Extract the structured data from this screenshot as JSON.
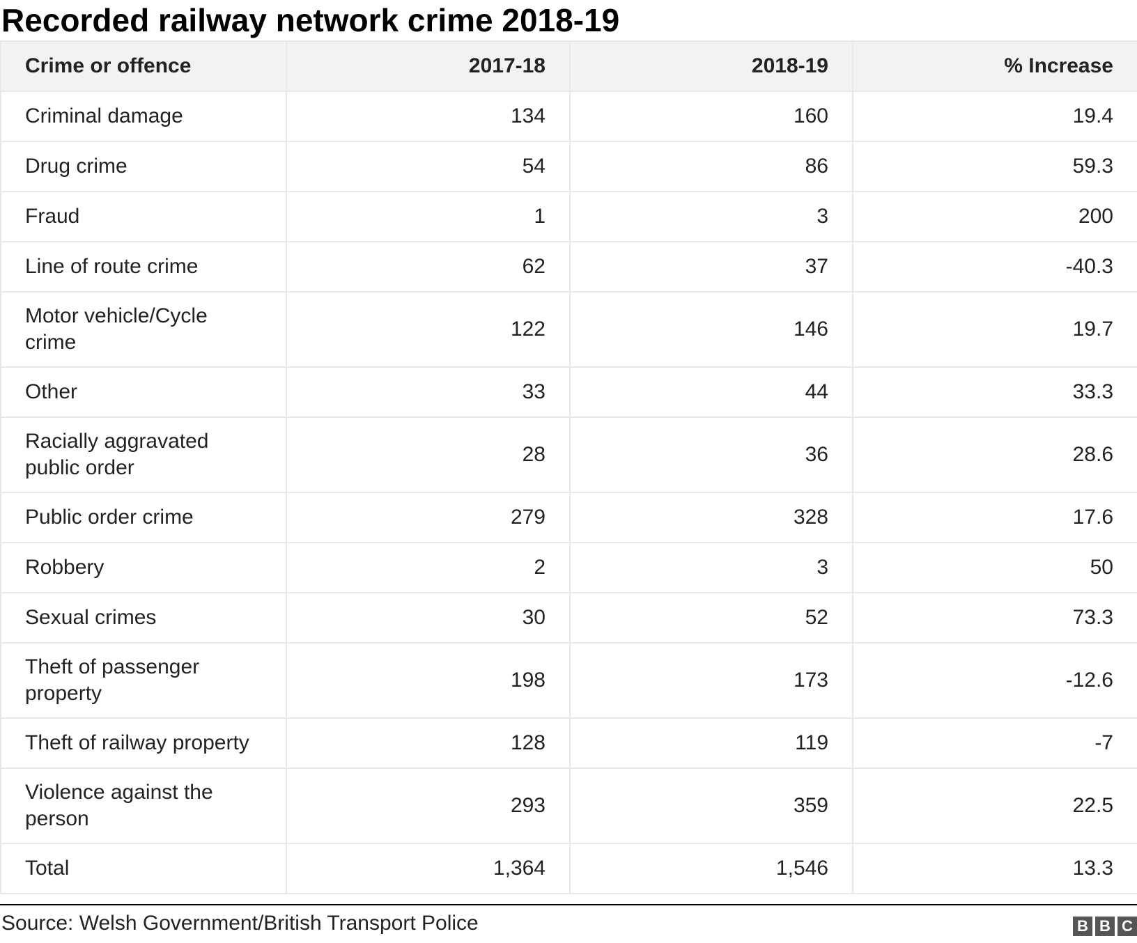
{
  "title": "Recorded railway network crime 2018-19",
  "source": "Source: Welsh Government/British Transport Police",
  "logo": {
    "letters": [
      "B",
      "B",
      "C"
    ]
  },
  "chart_data": {
    "type": "table",
    "title": "Recorded railway network crime 2018-19",
    "columns": [
      "Crime or offence",
      "2017-18",
      "2018-19",
      "% Increase"
    ],
    "rows": [
      [
        "Criminal damage",
        "134",
        "160",
        "19.4"
      ],
      [
        "Drug crime",
        "54",
        "86",
        "59.3"
      ],
      [
        "Fraud",
        "1",
        "3",
        "200"
      ],
      [
        "Line of route crime",
        "62",
        "37",
        "-40.3"
      ],
      [
        "Motor vehicle/Cycle crime",
        "122",
        "146",
        "19.7"
      ],
      [
        "Other",
        "33",
        "44",
        "33.3"
      ],
      [
        "Racially aggravated public order",
        "28",
        "36",
        "28.6"
      ],
      [
        "Public order crime",
        "279",
        "328",
        "17.6"
      ],
      [
        "Robbery",
        "2",
        "3",
        "50"
      ],
      [
        "Sexual crimes",
        "30",
        "52",
        "73.3"
      ],
      [
        "Theft of passenger property",
        "198",
        "173",
        "-12.6"
      ],
      [
        "Theft of railway property",
        "128",
        "119",
        "-7"
      ],
      [
        "Violence against the person",
        "293",
        "359",
        "22.5"
      ],
      [
        "Total",
        "1,364",
        "1,546",
        "13.3"
      ]
    ]
  }
}
